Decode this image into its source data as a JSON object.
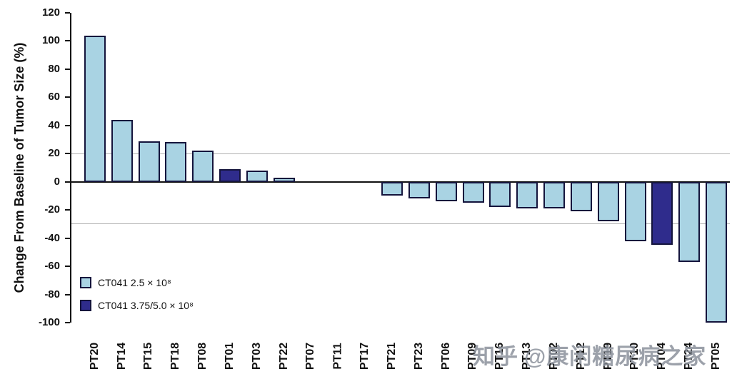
{
  "watermark": {
    "brand": "知乎",
    "handle": "@康闲糖尿病之家"
  },
  "chart_data": {
    "type": "bar",
    "title": "",
    "xlabel": "",
    "ylabel": "Change From Baseline of Tumor Size (%)",
    "ylim": [
      -100,
      120
    ],
    "ytick_step": 20,
    "grid": "off",
    "reference_lines": [
      20,
      -30
    ],
    "legend_position": "bottom-left inside plot",
    "legend": [
      {
        "label": "CT041 2.5 × 10⁸",
        "color": "#a9d3e3"
      },
      {
        "label": "CT041 3.75/5.0 × 10⁸",
        "color": "#2f2c8c"
      }
    ],
    "categories": [
      "PT20",
      "PT14",
      "PT15",
      "PT18",
      "PT08",
      "PT01",
      "PT03",
      "PT22",
      "PT07",
      "PT11",
      "PT17",
      "PT21",
      "PT23",
      "PT06",
      "PT09",
      "PT16",
      "PT13",
      "PT02",
      "PT12",
      "PT19",
      "PT10",
      "PT04",
      "PT24",
      "PT05"
    ],
    "values": [
      104,
      44,
      29,
      28,
      22,
      9,
      8,
      3,
      0,
      0,
      0,
      -10,
      -12,
      -14,
      -15,
      -18,
      -19,
      -19,
      -21,
      -28,
      -42,
      -45,
      -57,
      -100
    ],
    "series_groups": [
      0,
      0,
      0,
      0,
      0,
      1,
      0,
      0,
      0,
      0,
      0,
      0,
      0,
      0,
      0,
      0,
      0,
      0,
      0,
      0,
      0,
      1,
      0,
      0
    ]
  }
}
